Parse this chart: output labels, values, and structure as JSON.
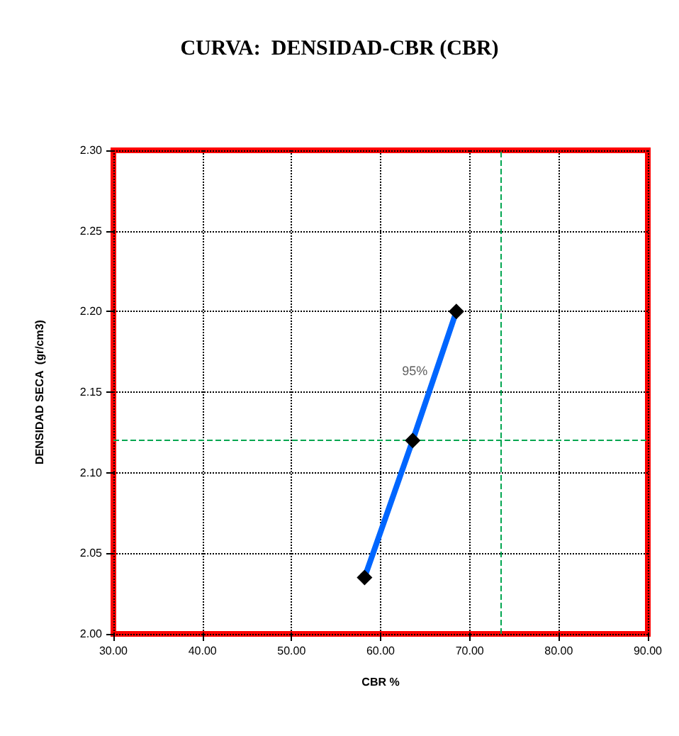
{
  "chart_data": {
    "type": "line",
    "title": "CURVA:  DENSIDAD-CBR (CBR)",
    "xlabel": "CBR %",
    "ylabel": "DENSIDAD SECA  (gr/cm3)",
    "series": [
      {
        "color": "#0066ff",
        "x": [
          58.2,
          63.6,
          68.5
        ],
        "values": [
          2.035,
          2.12,
          2.2
        ]
      }
    ],
    "xlim": [
      30,
      90
    ],
    "xticks": [
      {
        "value": 30,
        "label": "30.00"
      },
      {
        "value": 40,
        "label": "40.00"
      },
      {
        "value": 50,
        "label": "50.00"
      },
      {
        "value": 60,
        "label": "60.00"
      },
      {
        "value": 70,
        "label": "70.00"
      },
      {
        "value": 80,
        "label": "80.00"
      },
      {
        "value": 90,
        "label": "90.00"
      }
    ],
    "ylim": [
      2,
      2.3
    ],
    "yticks": [
      {
        "value": 2,
        "label": "2.00"
      },
      {
        "value": 2.05,
        "label": "2.05"
      },
      {
        "value": 2.1,
        "label": "2.10"
      },
      {
        "value": 2.15,
        "label": "2.15"
      },
      {
        "value": 2.2,
        "label": "2.20"
      },
      {
        "value": 2.25,
        "label": "2.25"
      },
      {
        "value": 2.3,
        "label": "2.30"
      }
    ],
    "ref_lines": [
      {
        "axis": "y",
        "value": 2.12,
        "color": "#00a651",
        "line_style": "dashed"
      },
      {
        "axis": "x",
        "value": 73.5,
        "color": "#00a651",
        "line_style": "dashed"
      }
    ],
    "annotations": [
      {
        "text": "95%",
        "x": 65.6,
        "y": 2.163
      }
    ],
    "grid": true,
    "marker": "diamond",
    "line_style": "solid"
  }
}
